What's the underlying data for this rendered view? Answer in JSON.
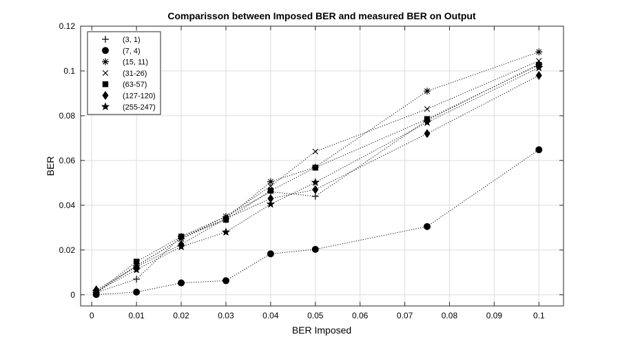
{
  "chart_data": {
    "type": "line",
    "title": "Comparisson between Imposed BER and measured BER on Output",
    "xlabel": "BER Imposed",
    "ylabel": "BER",
    "xlim": [
      -0.0025,
      0.1055
    ],
    "ylim": [
      -0.005,
      0.12
    ],
    "xticks": [
      0,
      0.01,
      0.02,
      0.03,
      0.04,
      0.05,
      0.06,
      0.07,
      0.08,
      0.09,
      0.1
    ],
    "xtick_labels": [
      "0",
      "0.01",
      "0.02",
      "0.03",
      "0.04",
      "0.05",
      "0.06",
      "0.07",
      "0.08",
      "0.09",
      "0.1"
    ],
    "yticks": [
      0,
      0.02,
      0.04,
      0.06,
      0.08,
      0.1,
      0.12
    ],
    "ytick_labels": [
      "0",
      "0.02",
      "0.04",
      "0.06",
      "0.08",
      "0.1",
      "0.12"
    ],
    "grid": true,
    "legend_position": "top-left",
    "line_style": "dotted",
    "color": "#000000",
    "x": [
      0.001,
      0.01,
      0.02,
      0.03,
      0.04,
      0.05,
      0.075,
      0.1
    ],
    "series": [
      {
        "name": "(3, 1)",
        "marker": "plus",
        "values": [
          0.001,
          0.007,
          0.026,
          0.035,
          0.046,
          0.044,
          0.078,
          0.103
        ]
      },
      {
        "name": "(7, 4)",
        "marker": "circle",
        "values": [
          0.0001,
          0.0012,
          0.0053,
          0.0063,
          0.0183,
          0.0203,
          0.0305,
          0.0648
        ]
      },
      {
        "name": "(15, 11)",
        "marker": "asterisk",
        "values": [
          0.001,
          0.013,
          0.025,
          0.034,
          0.0505,
          0.057,
          0.091,
          0.1085
        ]
      },
      {
        "name": "(31-26)",
        "marker": "x",
        "values": [
          0.001,
          0.013,
          0.025,
          0.035,
          0.0485,
          0.064,
          0.083,
          0.1045
        ]
      },
      {
        "name": "(63-57)",
        "marker": "square",
        "values": [
          0.001,
          0.0148,
          0.026,
          0.0335,
          0.0465,
          0.0568,
          0.0785,
          0.1027
        ]
      },
      {
        "name": "(127-120)",
        "marker": "diamond",
        "values": [
          0.0022,
          0.0125,
          0.0225,
          0.034,
          0.043,
          0.047,
          0.072,
          0.098
        ]
      },
      {
        "name": "(255-247)",
        "marker": "star",
        "values": [
          0.0015,
          0.0112,
          0.0215,
          0.028,
          0.0405,
          0.0502,
          0.077,
          0.1015
        ]
      }
    ]
  }
}
